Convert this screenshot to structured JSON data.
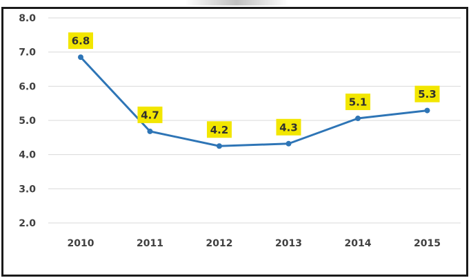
{
  "chart_data": {
    "type": "line",
    "title": "",
    "xlabel": "",
    "ylabel": "",
    "categories": [
      "2010",
      "2011",
      "2012",
      "2013",
      "2014",
      "2015"
    ],
    "series": [
      {
        "values": [
          6.85,
          4.68,
          4.25,
          4.32,
          5.06,
          5.29
        ],
        "data_labels": [
          "6.8",
          "4.7",
          "4.2",
          "4.3",
          "5.1",
          "5.3"
        ]
      }
    ],
    "ylim": [
      2.0,
      8.0
    ],
    "y_ticks": [
      "2.0",
      "3.0",
      "4.0",
      "5.0",
      "6.0",
      "7.0",
      "8.0"
    ],
    "grid": true,
    "legend": "none",
    "colors": {
      "line": "#2e75b6",
      "label_bg": "#f2e600",
      "grid": "#d9d9d9"
    }
  }
}
